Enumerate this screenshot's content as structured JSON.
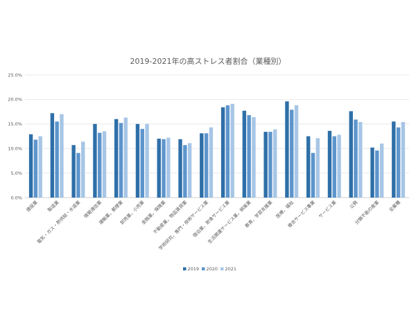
{
  "chart_data": {
    "type": "bar",
    "title": "2019-2021年の高ストレス者割合（業種別）",
    "xlabel": "",
    "ylabel": "",
    "ylim": [
      0,
      25
    ],
    "yticks": [
      "0.0%",
      "5.0%",
      "10.0%",
      "15.0%",
      "20.0%",
      "25.0%"
    ],
    "grid": true,
    "legend_position": "bottom",
    "categories": [
      "建設業",
      "製造業",
      "電気・ガス・熱供給・水道業",
      "情報通信業",
      "運輸業，郵便業",
      "卸売業，小売業",
      "金融業，保険業",
      "不動産業，物品賃貸業",
      "学術研究，専門・技術サービス業",
      "宿泊業，飲食サービス業",
      "生活関連サービス業，娯楽業",
      "教育，学習支援業",
      "医療，福祉",
      "複合サービス事業",
      "サービス業",
      "公務",
      "分類不能の産業",
      "全業種"
    ],
    "series": [
      {
        "name": "2019",
        "color": "#2e6fa8",
        "values": [
          12.9,
          17.2,
          10.7,
          15.0,
          16.0,
          15.0,
          12.0,
          11.9,
          13.1,
          18.4,
          17.7,
          13.4,
          19.6,
          12.5,
          13.6,
          17.6,
          10.2,
          15.5
        ]
      },
      {
        "name": "2020",
        "color": "#5d95cc",
        "values": [
          11.8,
          15.5,
          9.1,
          13.2,
          15.2,
          14.0,
          11.9,
          10.7,
          13.1,
          18.8,
          16.8,
          13.4,
          17.9,
          9.1,
          12.5,
          15.9,
          9.6,
          14.3
        ]
      },
      {
        "name": "2021",
        "color": "#a7c6e6",
        "values": [
          12.5,
          17.0,
          11.4,
          13.5,
          16.3,
          15.0,
          12.2,
          11.1,
          14.3,
          19.1,
          16.4,
          13.9,
          18.8,
          12.1,
          12.8,
          15.4,
          11.0,
          15.4
        ]
      }
    ]
  }
}
